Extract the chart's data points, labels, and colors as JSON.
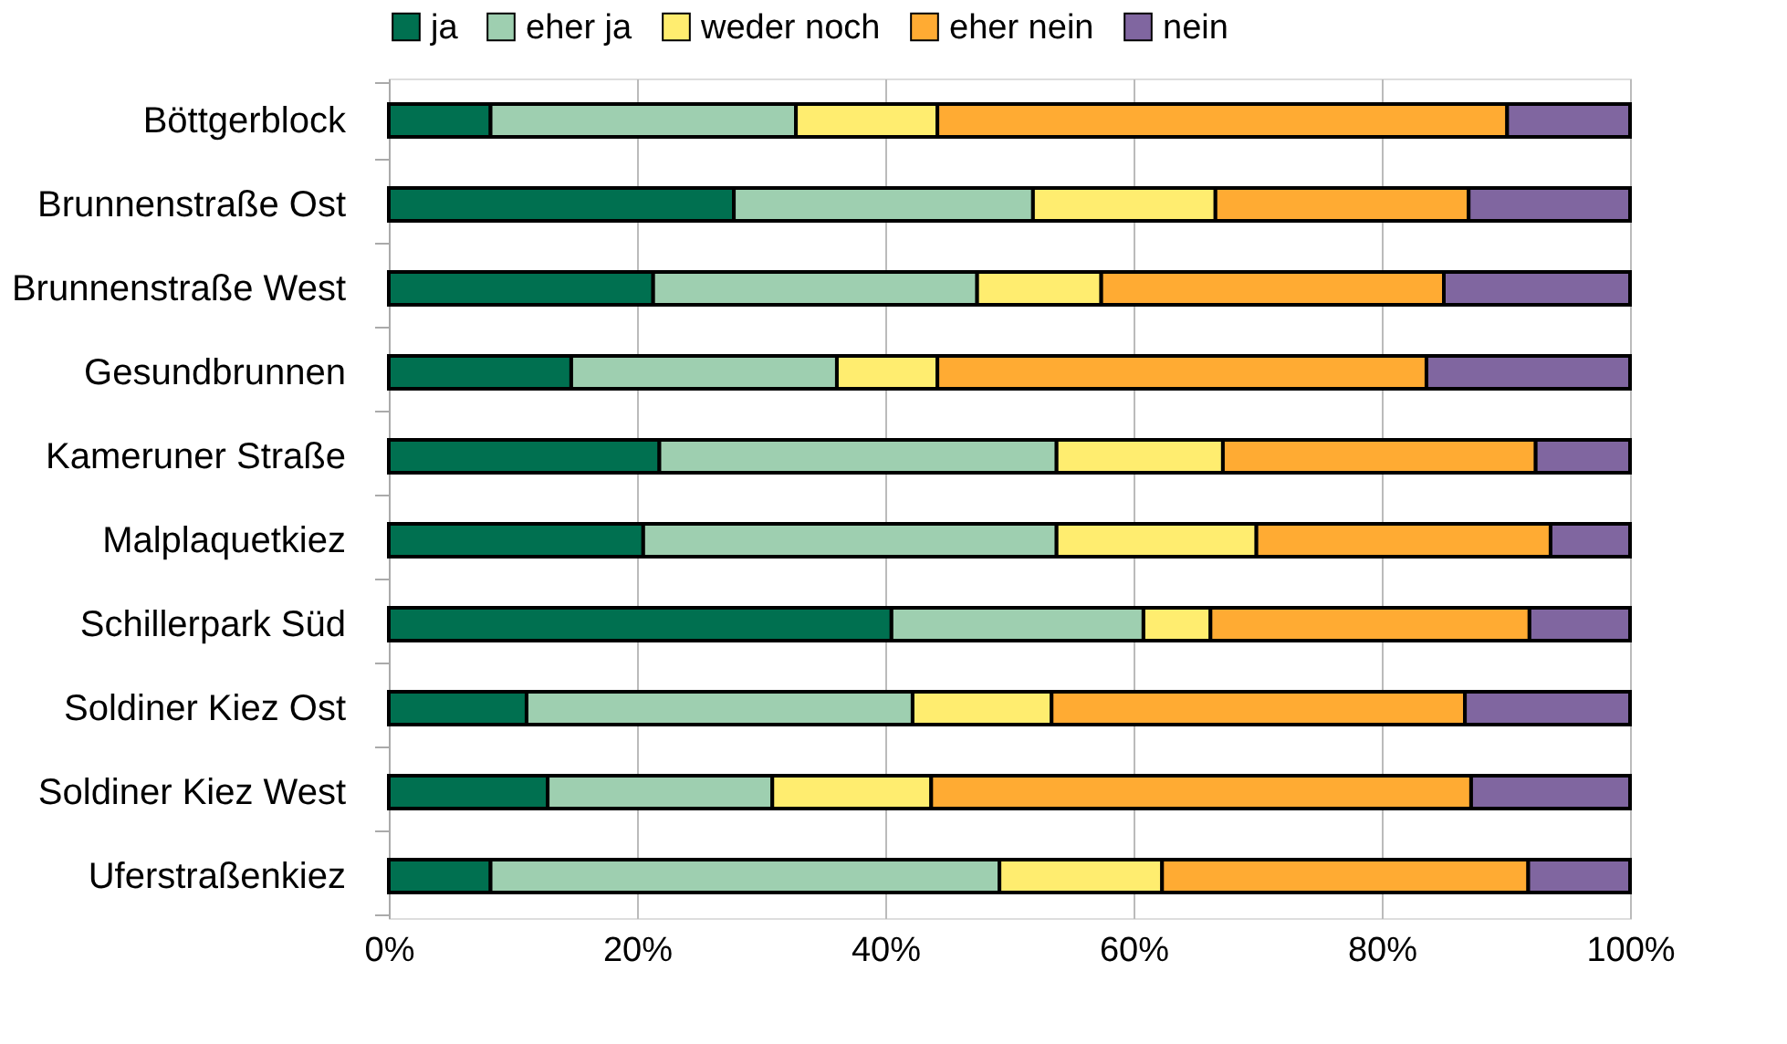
{
  "chart_data": {
    "type": "bar",
    "orientation": "horizontal",
    "stacked": true,
    "categories": [
      "Böttgerblock",
      "Brunnenstraße Ost",
      "Brunnenstraße West",
      "Gesundbrunnen",
      "Kameruner Straße",
      "Malplaquetkiez",
      "Schillerpark Süd",
      "Soldiner Kiez Ost",
      "Soldiner Kiez West",
      "Uferstraßenkiez"
    ],
    "series": [
      {
        "name": "ja",
        "color": "#007050",
        "values": [
          8.2,
          27.8,
          21.3,
          14.7,
          21.8,
          20.5,
          40.5,
          11.1,
          12.8,
          8.2
        ]
      },
      {
        "name": "eher ja",
        "color": "#9ecfb0",
        "values": [
          24.6,
          24.1,
          26.1,
          21.4,
          32.0,
          33.3,
          20.3,
          31.1,
          18.1,
          41.0
        ]
      },
      {
        "name": "weder noch",
        "color": "#ffed6f",
        "values": [
          11.4,
          14.7,
          10.0,
          8.1,
          13.4,
          16.1,
          5.4,
          11.2,
          12.8,
          13.1
        ]
      },
      {
        "name": "eher nein",
        "color": "#ffab33",
        "values": [
          45.9,
          20.4,
          27.6,
          39.4,
          25.2,
          23.7,
          25.7,
          33.3,
          43.5,
          29.5
        ]
      },
      {
        "name": "nein",
        "color": "#8066a0",
        "values": [
          9.9,
          13.0,
          15.0,
          16.4,
          7.6,
          6.4,
          8.1,
          13.3,
          12.8,
          8.2
        ]
      }
    ],
    "xlim": [
      0,
      100
    ],
    "xticks": [
      {
        "value": 0,
        "label": "0%"
      },
      {
        "value": 20,
        "label": "20%"
      },
      {
        "value": 40,
        "label": "40%"
      },
      {
        "value": 60,
        "label": "60%"
      },
      {
        "value": 80,
        "label": "80%"
      },
      {
        "value": 100,
        "label": "100%"
      }
    ],
    "grid": "x",
    "legend": "top"
  }
}
